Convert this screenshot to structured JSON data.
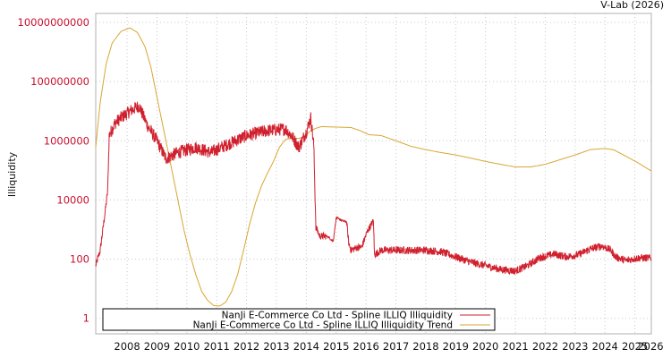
{
  "credit": "V-Lab (2026)",
  "colors": {
    "illiquidity": "#d0202e",
    "trend": "#d8a630",
    "ytick": "#c8102e",
    "grid": "#c8c8c8"
  },
  "chart_data": {
    "type": "line",
    "title": "",
    "xlabel": "",
    "ylabel": "Illiquidity",
    "yscale": "log",
    "ylim": [
      0.3,
      20000000000
    ],
    "xlim": [
      2007.45,
      2026.05
    ],
    "yticks": [
      {
        "value": 1,
        "label": "1"
      },
      {
        "value": 100,
        "label": "100"
      },
      {
        "value": 10000,
        "label": "10000"
      },
      {
        "value": 1000000,
        "label": "1000000"
      },
      {
        "value": 100000000,
        "label": "100000000"
      },
      {
        "value": 10000000000,
        "label": "10000000000"
      }
    ],
    "xticks": [
      {
        "value": 2008.5,
        "label": "2008"
      },
      {
        "value": 2009.5,
        "label": "2009"
      },
      {
        "value": 2010.5,
        "label": "2010"
      },
      {
        "value": 2011.5,
        "label": "2011"
      },
      {
        "value": 2012.5,
        "label": "2012"
      },
      {
        "value": 2013.5,
        "label": "2013"
      },
      {
        "value": 2014.5,
        "label": "2014"
      },
      {
        "value": 2015.5,
        "label": "2015"
      },
      {
        "value": 2016.5,
        "label": "2016"
      },
      {
        "value": 2017.5,
        "label": "2017"
      },
      {
        "value": 2018.5,
        "label": "2018"
      },
      {
        "value": 2019.5,
        "label": "2019"
      },
      {
        "value": 2020.5,
        "label": "2020"
      },
      {
        "value": 2021.5,
        "label": "2021"
      },
      {
        "value": 2022.5,
        "label": "2022"
      },
      {
        "value": 2023.5,
        "label": "2023"
      },
      {
        "value": 2024.5,
        "label": "2024"
      },
      {
        "value": 2025.5,
        "label": "2025"
      },
      {
        "value": 2026.5,
        "label": "2026"
      }
    ],
    "legend": {
      "position": "bottom-left"
    },
    "series": [
      {
        "name": "NanJi E-Commerce Co Ltd - Spline ILLIQ Illiquidity",
        "style": "noisy",
        "points": [
          [
            2007.45,
            60
          ],
          [
            2007.6,
            200
          ],
          [
            2007.75,
            3000
          ],
          [
            2007.85,
            20000
          ],
          [
            2007.9,
            1500000
          ],
          [
            2008.1,
            4000000
          ],
          [
            2008.3,
            6000000
          ],
          [
            2008.6,
            10000000
          ],
          [
            2008.9,
            15000000
          ],
          [
            2009.2,
            3000000
          ],
          [
            2009.5,
            1000000
          ],
          [
            2009.8,
            250000
          ],
          [
            2010.2,
            400000
          ],
          [
            2010.8,
            600000
          ],
          [
            2011.3,
            400000
          ],
          [
            2011.8,
            700000
          ],
          [
            2012.5,
            1500000
          ],
          [
            2013.2,
            2200000
          ],
          [
            2013.8,
            2500000
          ],
          [
            2014.0,
            1500000
          ],
          [
            2014.25,
            600000
          ],
          [
            2014.5,
            2000000
          ],
          [
            2014.65,
            6000000
          ],
          [
            2014.75,
            700000
          ],
          [
            2014.82,
            1200
          ],
          [
            2014.95,
            600
          ],
          [
            2015.2,
            600
          ],
          [
            2015.4,
            400
          ],
          [
            2015.5,
            2500
          ],
          [
            2015.7,
            2000
          ],
          [
            2015.85,
            1800
          ],
          [
            2015.92,
            350
          ],
          [
            2016.0,
            200
          ],
          [
            2016.2,
            250
          ],
          [
            2016.35,
            250
          ],
          [
            2016.55,
            900
          ],
          [
            2016.75,
            2000
          ],
          [
            2016.78,
            140
          ],
          [
            2017.0,
            200
          ],
          [
            2017.5,
            200
          ],
          [
            2018.0,
            200
          ],
          [
            2018.5,
            200
          ],
          [
            2019.0,
            180
          ],
          [
            2019.5,
            120
          ],
          [
            2020.0,
            80
          ],
          [
            2020.5,
            60
          ],
          [
            2021.0,
            45
          ],
          [
            2021.5,
            40
          ],
          [
            2021.9,
            60
          ],
          [
            2022.3,
            110
          ],
          [
            2022.8,
            150
          ],
          [
            2023.2,
            120
          ],
          [
            2023.6,
            140
          ],
          [
            2024.0,
            220
          ],
          [
            2024.4,
            280
          ],
          [
            2024.7,
            200
          ],
          [
            2024.85,
            120
          ],
          [
            2025.2,
            90
          ],
          [
            2025.6,
            110
          ],
          [
            2026.05,
            110
          ]
        ]
      },
      {
        "name": "NanJi E-Commerce Co Ltd - Spline ILLIQ Illiquidity Trend",
        "style": "smooth",
        "points": [
          [
            2007.45,
            600000
          ],
          [
            2007.6,
            20000000
          ],
          [
            2007.8,
            400000000
          ],
          [
            2008.0,
            2000000000
          ],
          [
            2008.3,
            5000000000
          ],
          [
            2008.6,
            6500000000
          ],
          [
            2008.85,
            4500000000
          ],
          [
            2009.1,
            1500000000
          ],
          [
            2009.3,
            300000000
          ],
          [
            2009.5,
            30000000
          ],
          [
            2009.8,
            1000000
          ],
          [
            2010.0,
            100000
          ],
          [
            2010.2,
            10000
          ],
          [
            2010.4,
            1000
          ],
          [
            2010.6,
            150
          ],
          [
            2010.8,
            30
          ],
          [
            2011.0,
            8
          ],
          [
            2011.2,
            4
          ],
          [
            2011.4,
            2.7
          ],
          [
            2011.6,
            2.6
          ],
          [
            2011.8,
            3.5
          ],
          [
            2012.0,
            8
          ],
          [
            2012.2,
            30
          ],
          [
            2012.4,
            200
          ],
          [
            2012.6,
            1500
          ],
          [
            2012.8,
            8000
          ],
          [
            2013.0,
            30000
          ],
          [
            2013.2,
            80000
          ],
          [
            2013.4,
            200000
          ],
          [
            2013.6,
            600000
          ],
          [
            2013.8,
            1100000
          ],
          [
            2014.0,
            1200000
          ],
          [
            2014.2,
            1200000
          ],
          [
            2014.4,
            1250000
          ],
          [
            2014.6,
            2000000
          ],
          [
            2014.8,
            2600000
          ],
          [
            2015.0,
            3000000
          ],
          [
            2015.5,
            2900000
          ],
          [
            2016.0,
            2800000
          ],
          [
            2016.3,
            2200000
          ],
          [
            2016.6,
            1600000
          ],
          [
            2017.0,
            1500000
          ],
          [
            2017.5,
            1000000
          ],
          [
            2018.0,
            650000
          ],
          [
            2018.5,
            500000
          ],
          [
            2019.0,
            400000
          ],
          [
            2019.5,
            330000
          ],
          [
            2020.0,
            260000
          ],
          [
            2020.5,
            200000
          ],
          [
            2021.0,
            160000
          ],
          [
            2021.5,
            130000
          ],
          [
            2022.0,
            130000
          ],
          [
            2022.5,
            160000
          ],
          [
            2023.0,
            230000
          ],
          [
            2023.5,
            330000
          ],
          [
            2024.0,
            500000
          ],
          [
            2024.5,
            550000
          ],
          [
            2024.8,
            490000
          ],
          [
            2025.2,
            300000
          ],
          [
            2025.6,
            180000
          ],
          [
            2026.05,
            95000
          ]
        ]
      }
    ]
  }
}
